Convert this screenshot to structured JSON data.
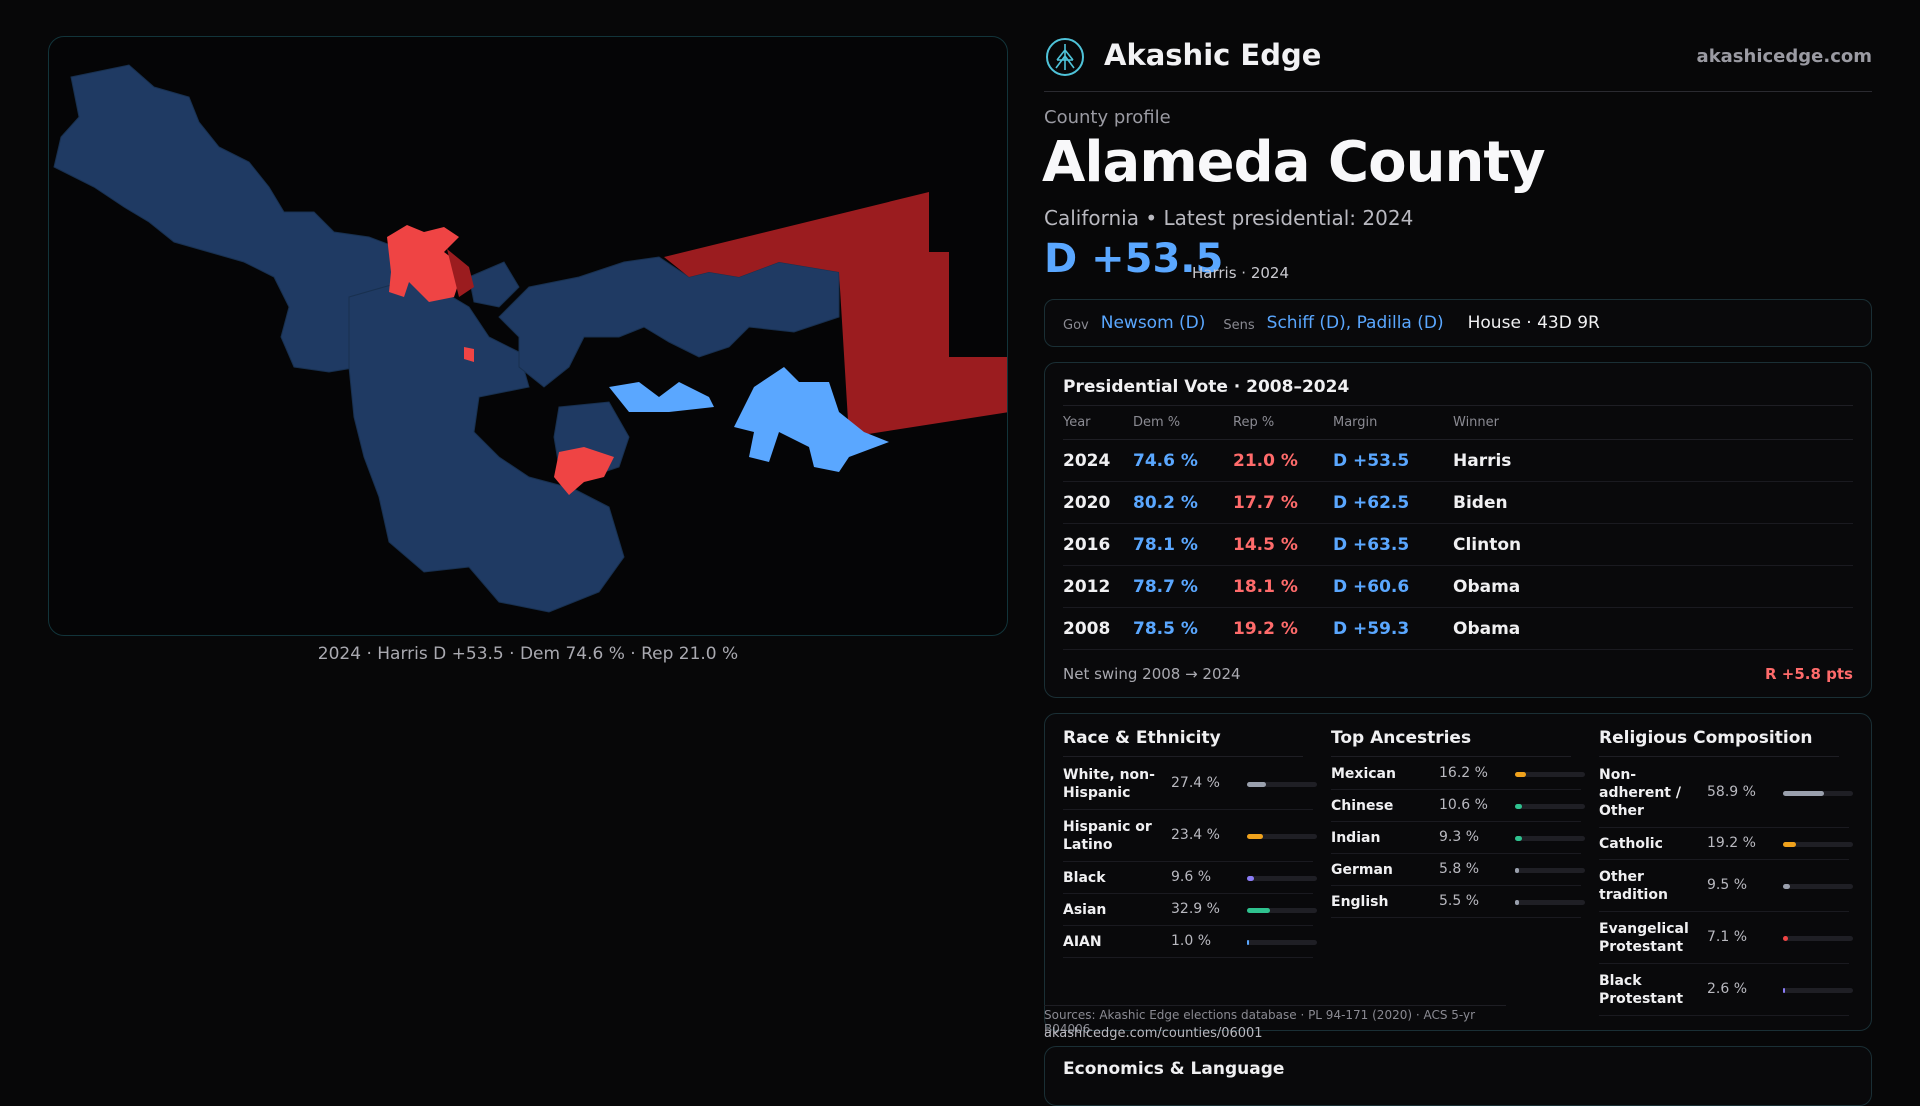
{
  "map": {
    "caption": "2024 · Harris D +53.5 · Dem 74.6 % · Rep 21.0 %",
    "colors": {
      "dem_dark": "#1f3a63",
      "dem_light": "#5aa7ff",
      "rep_dark": "#9b1c1f",
      "rep_light": "#ef4444"
    }
  },
  "header": {
    "brand": "Akashic Edge",
    "domain": "akashicedge.com",
    "logo_icon": "tree-of-life-icon"
  },
  "county": {
    "label": "County profile",
    "name": "Alameda County",
    "subtitle": "California • Latest presidential: 2024",
    "margin": "D +53.5",
    "margin_note": "Harris · 2024"
  },
  "officials": {
    "gov_key": "Gov",
    "gov": "Newsom (D)",
    "sens_key": "Sens",
    "sens": "Schiff (D), Padilla (D)",
    "house": "House · 43D 9R"
  },
  "presidential": {
    "title": "Presidential Vote · 2008–2024",
    "headers": [
      "Year",
      "Dem %",
      "Rep %",
      "Margin",
      "Winner"
    ],
    "rows": [
      {
        "year": "2024",
        "dem": "74.6 %",
        "rep": "21.0 %",
        "margin": "D +53.5",
        "winner": "Harris"
      },
      {
        "year": "2020",
        "dem": "80.2 %",
        "rep": "17.7 %",
        "margin": "D +62.5",
        "winner": "Biden"
      },
      {
        "year": "2016",
        "dem": "78.1 %",
        "rep": "14.5 %",
        "margin": "D +63.5",
        "winner": "Clinton"
      },
      {
        "year": "2012",
        "dem": "78.7 %",
        "rep": "18.1 %",
        "margin": "D +60.6",
        "winner": "Obama"
      },
      {
        "year": "2008",
        "dem": "78.5 %",
        "rep": "19.2 %",
        "margin": "D +59.3",
        "winner": "Obama"
      }
    ],
    "swing_label": "Net swing 2008 → 2024",
    "swing_value": "R +5.8 pts"
  },
  "demographics": {
    "race": {
      "title": "Race & Ethnicity",
      "items": [
        {
          "label": "White, non-Hispanic",
          "pct": "27.4 %",
          "value": 27.4,
          "color": "#9aa0ad"
        },
        {
          "label": "Hispanic or Latino",
          "pct": "23.4 %",
          "value": 23.4,
          "color": "#f0a21c"
        },
        {
          "label": "Black",
          "pct": "9.6 %",
          "value": 9.6,
          "color": "#8b7cf6"
        },
        {
          "label": "Asian",
          "pct": "32.9 %",
          "value": 32.9,
          "color": "#2fc28f"
        },
        {
          "label": "AIAN",
          "pct": "1.0 %",
          "value": 1.0,
          "color": "#5aa7ff"
        }
      ]
    },
    "ancestry": {
      "title": "Top Ancestries",
      "items": [
        {
          "label": "Mexican",
          "pct": "16.2 %",
          "value": 16.2,
          "color": "#f0a21c"
        },
        {
          "label": "Chinese",
          "pct": "10.6 %",
          "value": 10.6,
          "color": "#2fc28f"
        },
        {
          "label": "Indian",
          "pct": "9.3 %",
          "value": 9.3,
          "color": "#2fc28f"
        },
        {
          "label": "German",
          "pct": "5.8 %",
          "value": 5.8,
          "color": "#9aa0ad"
        },
        {
          "label": "English",
          "pct": "5.5 %",
          "value": 5.5,
          "color": "#9aa0ad"
        }
      ]
    },
    "religion": {
      "title": "Religious Composition",
      "items": [
        {
          "label": "Non-adherent / Other",
          "pct": "58.9 %",
          "value": 58.9,
          "color": "#9aa0ad"
        },
        {
          "label": "Catholic",
          "pct": "19.2 %",
          "value": 19.2,
          "color": "#f0a21c"
        },
        {
          "label": "Other tradition",
          "pct": "9.5 %",
          "value": 9.5,
          "color": "#9aa0ad"
        },
        {
          "label": "Evangelical Protestant",
          "pct": "7.1 %",
          "value": 7.1,
          "color": "#ef4444"
        },
        {
          "label": "Black Protestant",
          "pct": "2.6 %",
          "value": 2.6,
          "color": "#8b7cf6"
        }
      ]
    }
  },
  "sources": {
    "text": "Sources: Akashic Edge elections database · PL 94-171 (2020) · ACS 5-yr B04006",
    "url": "akashicedge.com/counties/06001"
  },
  "economics": {
    "title": "Economics & Language"
  }
}
